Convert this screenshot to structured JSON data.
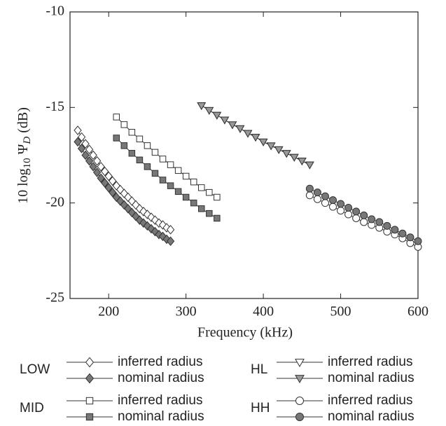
{
  "chart_data": {
    "type": "scatter",
    "xlabel": "Frequency (kHz)",
    "ylabel": [
      "10 log",
      "10",
      " Ψ",
      "D",
      " (dB)"
    ],
    "xlim": [
      150,
      600
    ],
    "ylim": [
      -25,
      -10
    ],
    "xticks": [
      200,
      300,
      400,
      500,
      600
    ],
    "yticks": [
      -25,
      -20,
      -15,
      -10
    ],
    "series": [
      {
        "group": "LOW",
        "name": "inferred radius",
        "marker": "diamond",
        "color": "#ffffff",
        "x": [
          160,
          165,
          170,
          175,
          180,
          185,
          190,
          195,
          200,
          205,
          210,
          215,
          220,
          225,
          230,
          235,
          240,
          245,
          250,
          255,
          260,
          265,
          270,
          275,
          280
        ],
        "values": [
          -16.2,
          -16.55,
          -16.9,
          -17.2,
          -17.5,
          -17.8,
          -18.1,
          -18.35,
          -18.6,
          -18.85,
          -19.1,
          -19.3,
          -19.5,
          -19.7,
          -19.9,
          -20.1,
          -20.3,
          -20.45,
          -20.6,
          -20.75,
          -20.9,
          -21.05,
          -21.15,
          -21.3,
          -21.4
        ]
      },
      {
        "group": "LOW",
        "name": "nominal radius",
        "marker": "diamond",
        "color": "#777777",
        "x": [
          160,
          165,
          170,
          175,
          180,
          185,
          190,
          195,
          200,
          205,
          210,
          215,
          220,
          225,
          230,
          235,
          240,
          245,
          250,
          255,
          260,
          265,
          270,
          275,
          280
        ],
        "values": [
          -16.8,
          -17.15,
          -17.5,
          -17.8,
          -18.1,
          -18.4,
          -18.7,
          -18.95,
          -19.2,
          -19.45,
          -19.7,
          -19.9,
          -20.1,
          -20.3,
          -20.5,
          -20.7,
          -20.9,
          -21.05,
          -21.2,
          -21.35,
          -21.5,
          -21.65,
          -21.75,
          -21.9,
          -22.0
        ]
      },
      {
        "group": "MID",
        "name": "inferred radius",
        "marker": "square",
        "color": "#ffffff",
        "x": [
          210,
          220,
          230,
          240,
          250,
          260,
          270,
          280,
          290,
          300,
          310,
          320,
          330,
          340
        ],
        "values": [
          -15.5,
          -15.9,
          -16.3,
          -16.65,
          -17.0,
          -17.35,
          -17.7,
          -18.0,
          -18.3,
          -18.6,
          -18.9,
          -19.2,
          -19.45,
          -19.7
        ]
      },
      {
        "group": "MID",
        "name": "nominal radius",
        "marker": "square",
        "color": "#777777",
        "x": [
          210,
          220,
          230,
          240,
          250,
          260,
          270,
          280,
          290,
          300,
          310,
          320,
          330,
          340
        ],
        "values": [
          -16.6,
          -17.0,
          -17.4,
          -17.75,
          -18.1,
          -18.45,
          -18.8,
          -19.1,
          -19.4,
          -19.7,
          -20.0,
          -20.3,
          -20.55,
          -20.8
        ]
      },
      {
        "group": "HL",
        "name": "inferred radius",
        "marker": "triangle-down",
        "color": "#ffffff",
        "x": [
          320,
          330,
          340,
          350,
          360,
          370,
          380,
          390,
          400,
          410,
          420,
          430,
          440,
          450,
          460
        ],
        "values": [
          -14.9,
          -15.15,
          -15.4,
          -15.65,
          -15.9,
          -16.1,
          -16.35,
          -16.55,
          -16.8,
          -17.0,
          -17.2,
          -17.4,
          -17.6,
          -17.8,
          -18.0
        ]
      },
      {
        "group": "HL",
        "name": "nominal radius",
        "marker": "triangle-down",
        "color": "#999999",
        "x": [
          320,
          330,
          340,
          350,
          360,
          370,
          380,
          390,
          400,
          410,
          420,
          430,
          440,
          450,
          460
        ],
        "values": [
          -14.9,
          -15.15,
          -15.4,
          -15.65,
          -15.9,
          -16.1,
          -16.35,
          -16.55,
          -16.8,
          -17.0,
          -17.2,
          -17.4,
          -17.6,
          -17.8,
          -18.0
        ]
      },
      {
        "group": "HH",
        "name": "inferred radius",
        "marker": "circle",
        "color": "#ffffff",
        "x": [
          460,
          470,
          480,
          490,
          500,
          510,
          520,
          530,
          540,
          550,
          560,
          570,
          580,
          590,
          600
        ],
        "values": [
          -19.6,
          -19.8,
          -20.0,
          -20.2,
          -20.4,
          -20.6,
          -20.8,
          -21.0,
          -21.15,
          -21.3,
          -21.5,
          -21.65,
          -21.85,
          -22.1,
          -22.3
        ]
      },
      {
        "group": "HH",
        "name": "nominal radius",
        "marker": "circle",
        "color": "#777777",
        "x": [
          460,
          470,
          480,
          490,
          500,
          510,
          520,
          530,
          540,
          550,
          560,
          570,
          580,
          590,
          600
        ],
        "values": [
          -19.25,
          -19.45,
          -19.65,
          -19.85,
          -20.05,
          -20.25,
          -20.45,
          -20.65,
          -20.85,
          -21.0,
          -21.2,
          -21.4,
          -21.6,
          -21.8,
          -22.0
        ]
      }
    ]
  }
}
